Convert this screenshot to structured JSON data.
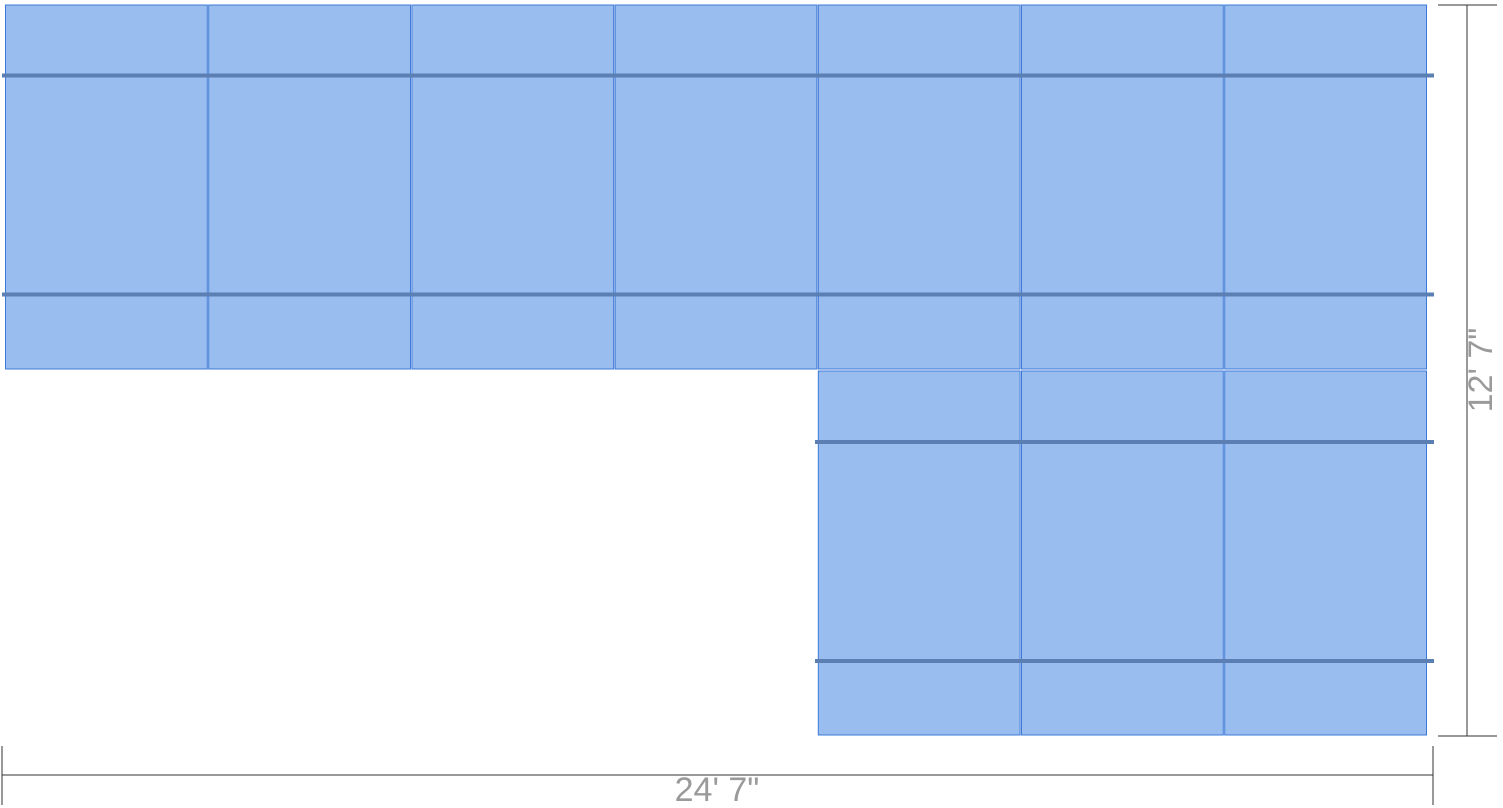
{
  "diagram": {
    "type": "tile-layout",
    "colors": {
      "tile_fill": "#99bdee",
      "tile_stroke": "#3d7ad8",
      "seam": "#5b7fb3",
      "dimension_line": "#333333",
      "dimension_text": "#9a9a9a"
    },
    "width_label": "24' 7\"",
    "height_label": "12' 7\"",
    "sections": [
      {
        "name": "upper-run",
        "columns": 7,
        "rows": 1,
        "start_column": 0,
        "seams_per_tile": 2
      },
      {
        "name": "lower-run",
        "columns": 3,
        "rows": 1,
        "start_column": 4,
        "seams_per_tile": 2
      }
    ]
  }
}
